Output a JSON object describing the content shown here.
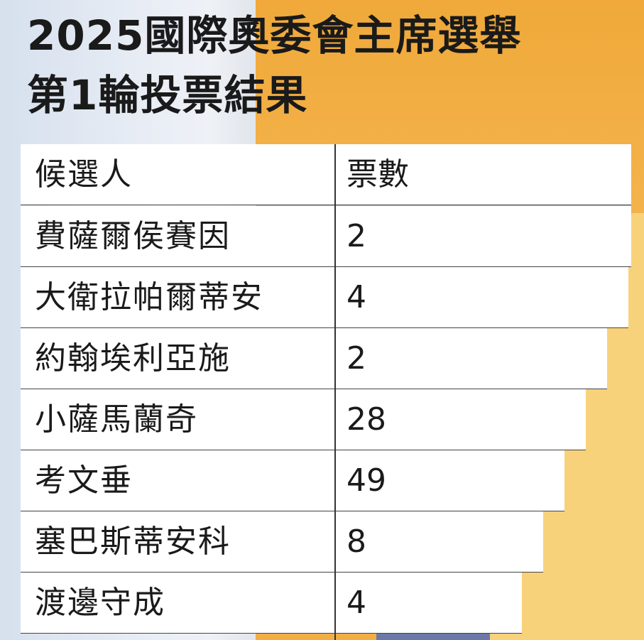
{
  "title_line1": "2025國際奧委會主席選舉",
  "title_line2": "第1輪投票結果",
  "chart_data": {
    "type": "table",
    "columns": [
      "候選人",
      "票數"
    ],
    "rows": [
      {
        "name": "費薩爾侯賽因",
        "votes": 2
      },
      {
        "name": "大衛拉帕爾蒂安",
        "votes": 4
      },
      {
        "name": "約翰埃利亞施",
        "votes": 2
      },
      {
        "name": "小薩馬蘭奇",
        "votes": 28
      },
      {
        "name": "考文垂",
        "votes": 49
      },
      {
        "name": "塞巴斯蒂安科",
        "votes": 8
      },
      {
        "name": "渡邊守成",
        "votes": 4
      }
    ]
  }
}
